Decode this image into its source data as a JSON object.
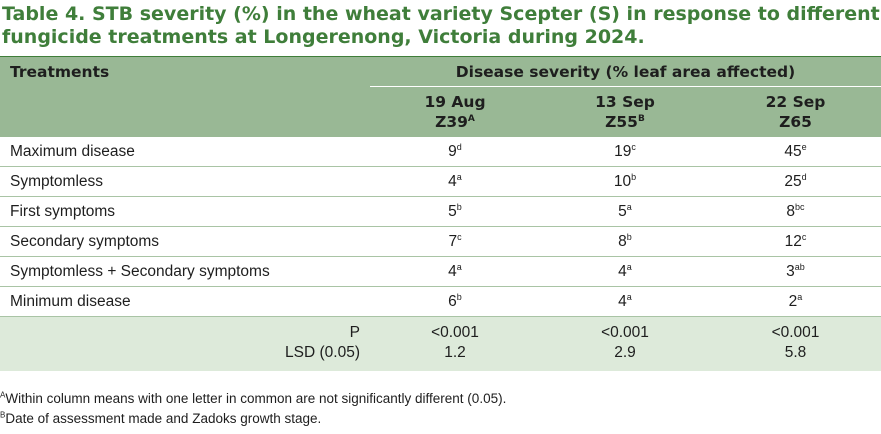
{
  "title": "Table 4. STB severity (%) in the wheat variety Scepter (S) in response to different fungicide treatments at Longerenong, Victoria during 2024.",
  "header": {
    "treatments": "Treatments",
    "disease_severity": "Disease severity (% leaf area affected)",
    "columns": [
      {
        "date": "19 Aug",
        "stage": "Z39",
        "stage_sup": "A"
      },
      {
        "date": "13 Sep",
        "stage": "Z55",
        "stage_sup": "B"
      },
      {
        "date": "22 Sep",
        "stage": "Z65",
        "stage_sup": ""
      }
    ]
  },
  "rows": [
    {
      "label": "Maximum disease",
      "cells": [
        {
          "v": "9",
          "s": "d"
        },
        {
          "v": "19",
          "s": "c"
        },
        {
          "v": "45",
          "s": "e"
        }
      ]
    },
    {
      "label": "Symptomless",
      "cells": [
        {
          "v": "4",
          "s": "a"
        },
        {
          "v": "10",
          "s": "b"
        },
        {
          "v": "25",
          "s": "d"
        }
      ]
    },
    {
      "label": "First symptoms",
      "cells": [
        {
          "v": "5",
          "s": "b"
        },
        {
          "v": "5",
          "s": "a"
        },
        {
          "v": "8",
          "s": "bc"
        }
      ]
    },
    {
      "label": "Secondary symptoms",
      "cells": [
        {
          "v": "7",
          "s": "c"
        },
        {
          "v": "8",
          "s": "b"
        },
        {
          "v": "12",
          "s": "c"
        }
      ]
    },
    {
      "label": "Symptomless + Secondary symptoms",
      "cells": [
        {
          "v": "4",
          "s": "a"
        },
        {
          "v": "4",
          "s": "a"
        },
        {
          "v": "3",
          "s": "ab"
        }
      ]
    },
    {
      "label": "Minimum disease",
      "cells": [
        {
          "v": "6",
          "s": "b"
        },
        {
          "v": "4",
          "s": "a"
        },
        {
          "v": "2",
          "s": "a"
        }
      ]
    }
  ],
  "stats": {
    "p_label": "P",
    "p_values": [
      "<0.001",
      "<0.001",
      "<0.001"
    ],
    "lsd_label": "LSD (0.05)",
    "lsd_values": [
      "1.2",
      "2.9",
      "5.8"
    ]
  },
  "footnotes": [
    {
      "mark": "A",
      "text": "Within column means with one letter in common are not significantly different (0.05)."
    },
    {
      "mark": "B",
      "text": "Date of assessment made and Zadoks growth stage."
    }
  ],
  "colors": {
    "title_green": "#3f7e3a",
    "header_bg": "#99b895",
    "stats_bg": "#ddeada",
    "rule": "#a9c4a5"
  }
}
